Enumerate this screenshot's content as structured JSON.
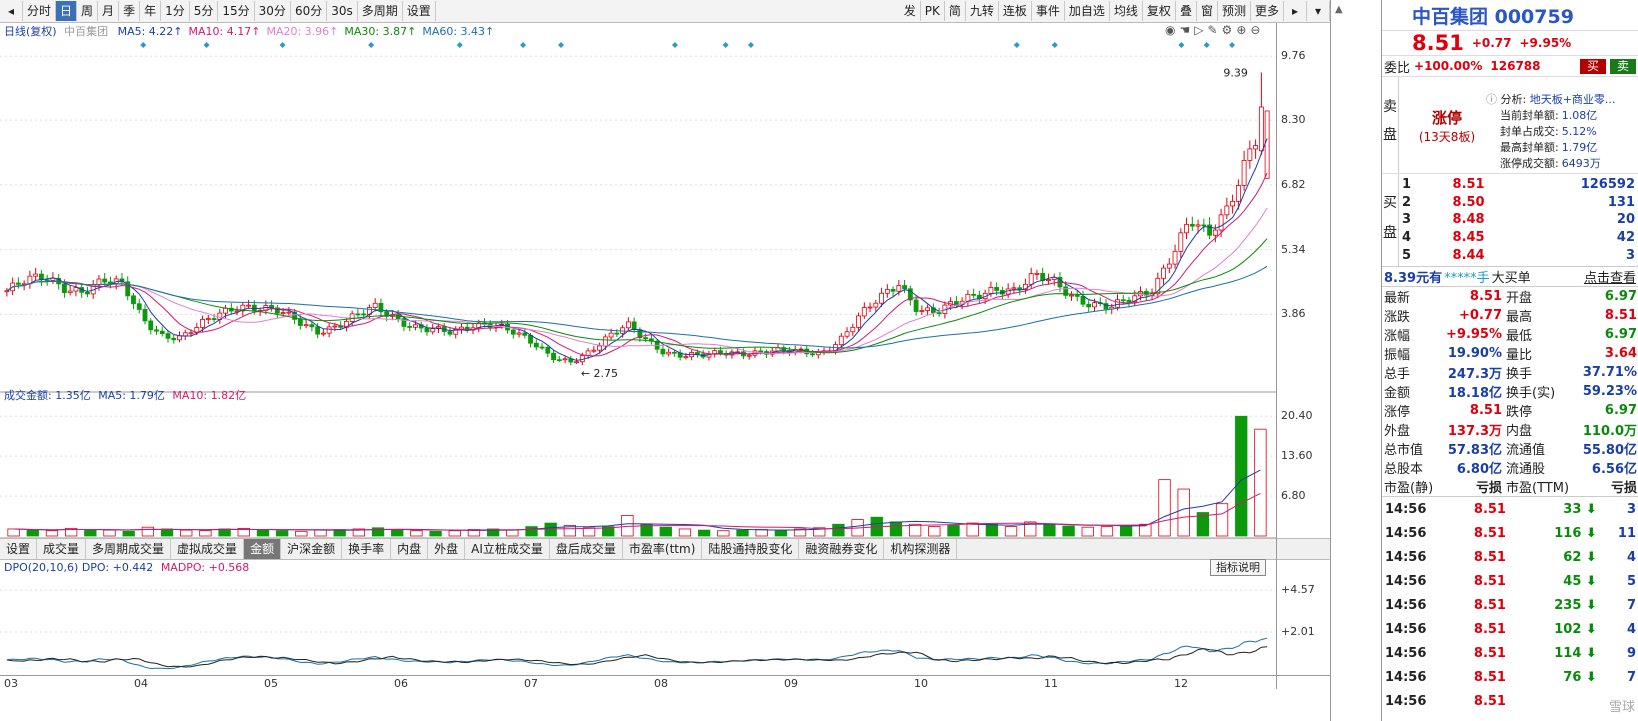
{
  "toolbar": {
    "left_items": [
      "分时",
      "日",
      "周",
      "月",
      "季",
      "年",
      "1分",
      "5分",
      "15分",
      "30分",
      "60分",
      "30s",
      "多周期",
      "设置"
    ],
    "active_item": "日",
    "right_items": [
      "发",
      "PK",
      "简",
      "九转",
      "连板",
      "事件",
      "加自选",
      "均线",
      "复权",
      "叠",
      "窗",
      "预测",
      "更多"
    ]
  },
  "kline": {
    "legend_title": "日线(复权)",
    "legend_name": "中百集团",
    "ma": [
      {
        "label": "MA5: 4.22↑",
        "color": "#1a3ea8"
      },
      {
        "label": "MA10: 4.17↑",
        "color": "#d41a6e"
      },
      {
        "label": "MA20: 3.96↑",
        "color": "#e07fd0"
      },
      {
        "label": "MA30: 3.87↑",
        "color": "#0a8a0a"
      },
      {
        "label": "MA60: 3.43↑",
        "color": "#1c6fa8"
      }
    ],
    "y_ticks": [
      "9.76",
      "8.30",
      "6.82",
      "5.34",
      "3.86"
    ],
    "high_label": "9.39",
    "low_label": "2.75",
    "x_labels": [
      "03",
      "04",
      "05",
      "06",
      "07",
      "08",
      "09",
      "10",
      "11",
      "12"
    ],
    "ylim": [
      2.2,
      10.2
    ],
    "close_path": [
      4.4,
      4.6,
      4.7,
      4.5,
      4.4,
      4.6,
      4.5,
      3.8,
      3.4,
      3.3,
      3.6,
      3.9,
      4.1,
      4.0,
      3.9,
      3.7,
      3.5,
      3.6,
      3.8,
      4.0,
      3.8,
      3.6,
      3.5,
      3.4,
      3.6,
      3.7,
      3.5,
      3.2,
      2.9,
      2.8,
      3.0,
      3.3,
      3.6,
      3.3,
      3.0,
      2.9,
      2.9,
      3.0,
      3.0,
      3.0,
      3.0,
      3.0,
      3.0,
      3.3,
      3.8,
      4.2,
      4.6,
      4.0,
      3.9,
      4.1,
      4.3,
      4.5,
      4.4,
      4.7,
      4.6,
      4.3,
      4.1,
      4.0,
      4.2,
      4.4,
      5.2,
      6.0,
      5.6,
      6.3,
      7.6,
      8.51
    ]
  },
  "volume": {
    "legend_title": "成交金额: 1.35亿",
    "ma5": "MA5: 1.79亿",
    "ma10": "MA10: 1.82亿",
    "y_ticks": [
      "20.40",
      "13.60",
      "6.80"
    ],
    "ylim": [
      0,
      23
    ],
    "bars": [
      1.2,
      1.0,
      0.9,
      1.3,
      1.1,
      1.0,
      0.8,
      1.5,
      1.2,
      1.0,
      0.9,
      1.2,
      1.3,
      1.1,
      0.9,
      0.8,
      1.0,
      1.1,
      1.2,
      1.4,
      1.0,
      0.9,
      0.8,
      0.9,
      1.1,
      1.2,
      1.0,
      1.6,
      2.2,
      1.8,
      1.4,
      1.6,
      3.5,
      2.0,
      1.5,
      1.2,
      1.0,
      0.9,
      1.0,
      1.1,
      1.0,
      1.2,
      1.4,
      2.0,
      2.8,
      3.2,
      2.4,
      2.0,
      1.6,
      1.8,
      2.2,
      2.0,
      1.6,
      2.4,
      2.0,
      1.7,
      1.5,
      1.6,
      1.8,
      2.0,
      9.6,
      8.0,
      4.0,
      5.5,
      20.4,
      18.2
    ],
    "bar_up": [
      true,
      false,
      true,
      true,
      false,
      true,
      false,
      true,
      false,
      true,
      true,
      false,
      true,
      false,
      false,
      true,
      true,
      false,
      true,
      false,
      false,
      true,
      false,
      true,
      true,
      false,
      true,
      false,
      false,
      true,
      true,
      false,
      true,
      false,
      false,
      true,
      false,
      true,
      false,
      true,
      false,
      true,
      true,
      false,
      true,
      false,
      false,
      true,
      true,
      false,
      true,
      false,
      true,
      true,
      false,
      false,
      true,
      true,
      false,
      true,
      true,
      true,
      false,
      true,
      false,
      true
    ]
  },
  "bottom_tabs": [
    "设置",
    "成交量",
    "多周期成交量",
    "虚拟成交量",
    "金额",
    "沪深金额",
    "换手率",
    "内盘",
    "外盘",
    "AI立桩成交量",
    "盘后成交量",
    "市盈率(ttm)",
    "陆股通持股变化",
    "融资融券变化",
    "机构探测器"
  ],
  "bottom_active": "金额",
  "dpo": {
    "legend": "DPO(20,10,6) DPO: +0.442",
    "madpo": "MADPO: +0.568",
    "help_button": "指标说明",
    "y_ticks": [
      "+4.57",
      "+2.01"
    ],
    "ylim": [
      -0.5,
      5.5
    ]
  },
  "quote": {
    "title": "中百集团 000759",
    "price": "8.51",
    "change": "+0.77",
    "change_pct": "+9.95%",
    "weibi_label": "委比",
    "weibi_value": "+100.00%",
    "weibi_vol": "126788",
    "buy_label": "买",
    "sell_label": "卖",
    "sell_side_label": "卖盘",
    "limit_status": "涨停",
    "limit_days": "(13天8板)",
    "analysis_label": "分析:",
    "analysis_value": "地天板+商业零...",
    "analysis_rows": [
      {
        "k": "当前封单额:",
        "v": "1.08亿"
      },
      {
        "k": "封单占成交:",
        "v": "5.12%"
      },
      {
        "k": "最高封单额:",
        "v": "1.79亿"
      },
      {
        "k": "涨停成交额:",
        "v": "6493万"
      }
    ],
    "buy_side_label": "买盘",
    "bids": [
      {
        "lvl": "1",
        "price": "8.51",
        "vol": "126592"
      },
      {
        "lvl": "2",
        "price": "8.50",
        "vol": "131"
      },
      {
        "lvl": "3",
        "price": "8.48",
        "vol": "20"
      },
      {
        "lvl": "4",
        "price": "8.45",
        "vol": "42"
      },
      {
        "lvl": "5",
        "price": "8.44",
        "vol": "3"
      }
    ],
    "bigorder_left": "8.39元有",
    "bigorder_mask": "*****手",
    "bigorder_mid": "大买单",
    "bigorder_link": "点击查看",
    "stats": [
      {
        "k1": "最新",
        "v1": "8.51",
        "c1": "red",
        "k2": "开盘",
        "v2": "6.97",
        "c2": "green"
      },
      {
        "k1": "涨跌",
        "v1": "+0.77",
        "c1": "red",
        "k2": "最高",
        "v2": "8.51",
        "c2": "red"
      },
      {
        "k1": "涨幅",
        "v1": "+9.95%",
        "c1": "red",
        "k2": "最低",
        "v2": "6.97",
        "c2": "green"
      },
      {
        "k1": "振幅",
        "v1": "19.90%",
        "c1": "blue",
        "k2": "量比",
        "v2": "3.64",
        "c2": "red"
      },
      {
        "k1": "总手",
        "v1": "247.3万",
        "c1": "blue",
        "k2": "换手",
        "v2": "37.71%",
        "c2": "blue"
      },
      {
        "k1": "金额",
        "v1": "18.18亿",
        "c1": "blue",
        "k2": "换手(实)",
        "v2": "59.23%",
        "c2": "blue"
      },
      {
        "k1": "涨停",
        "v1": "8.51",
        "c1": "red",
        "k2": "跌停",
        "v2": "6.97",
        "c2": "green"
      },
      {
        "k1": "外盘",
        "v1": "137.3万",
        "c1": "red",
        "k2": "内盘",
        "v2": "110.0万",
        "c2": "green"
      },
      {
        "k1": "总市值",
        "v1": "57.83亿",
        "c1": "blue",
        "k2": "流通值",
        "v2": "55.80亿",
        "c2": "blue"
      },
      {
        "k1": "总股本",
        "v1": "6.80亿",
        "c1": "blue",
        "k2": "流通股",
        "v2": "6.56亿",
        "c2": "blue"
      },
      {
        "k1": "市盈(静)",
        "v1": "亏损",
        "c1": "dark",
        "k2": "市盈(TTM)",
        "v2": "亏损",
        "c2": "dark"
      }
    ],
    "ticks": [
      {
        "t": "14:56",
        "p": "8.51",
        "v": "33",
        "d": "3"
      },
      {
        "t": "14:56",
        "p": "8.51",
        "v": "116",
        "d": "11"
      },
      {
        "t": "14:56",
        "p": "8.51",
        "v": "62",
        "d": "4"
      },
      {
        "t": "14:56",
        "p": "8.51",
        "v": "45",
        "d": "5"
      },
      {
        "t": "14:56",
        "p": "8.51",
        "v": "235",
        "d": "7"
      },
      {
        "t": "14:56",
        "p": "8.51",
        "v": "102",
        "d": "4"
      },
      {
        "t": "14:56",
        "p": "8.51",
        "v": "114",
        "d": "9"
      },
      {
        "t": "14:56",
        "p": "8.51",
        "v": "76",
        "d": "7"
      },
      {
        "t": "14:56",
        "p": "8.51",
        "v": "",
        "d": ""
      }
    ],
    "watermark": "雪球"
  }
}
